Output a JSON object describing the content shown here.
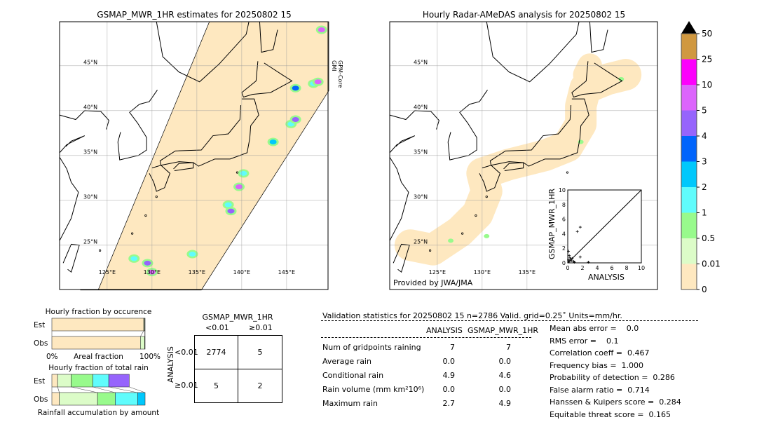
{
  "chart_data": [
    {
      "type": "map",
      "title": "GSMAP_MWR_1HR estimates for 20250802 15",
      "lon_ticks": [
        "125°E",
        "130°E",
        "135°E",
        "140°E",
        "145°E"
      ],
      "lat_ticks": [
        "45°N",
        "40°N",
        "35°N",
        "30°N",
        "25°N"
      ],
      "side_label": [
        "GPM-Core",
        "GMI"
      ]
    },
    {
      "type": "map",
      "title": "Hourly Radar-AMeDAS analysis for 20250802 15",
      "lon_ticks": [
        "125°E",
        "130°E",
        "135°E"
      ],
      "lat_ticks": [
        "45°N",
        "40°N",
        "35°N",
        "30°N",
        "25°N"
      ],
      "credit": "Provided by JWA/JMA"
    },
    {
      "type": "scatter",
      "xlabel": "ANALYSIS",
      "ylabel": "GSMAP_MWR_1HR",
      "xlim": [
        0,
        10
      ],
      "ylim": [
        0,
        10
      ],
      "ticks": [
        "0",
        "2",
        "4",
        "6",
        "8",
        "10"
      ],
      "points": [
        [
          1.7,
          4.9
        ],
        [
          1.3,
          4.3
        ],
        [
          1.7,
          0.8
        ],
        [
          2.8,
          0.1
        ],
        [
          0.1,
          1.6
        ],
        [
          0.2,
          1.0
        ],
        [
          0.3,
          0.7
        ],
        [
          0.4,
          0.5
        ],
        [
          0.5,
          0.3
        ],
        [
          0.8,
          0.2
        ],
        [
          0.2,
          0.2
        ],
        [
          0.1,
          0.4
        ],
        [
          0.6,
          0.6
        ],
        [
          0.9,
          0.1
        ]
      ]
    },
    {
      "type": "colorbar",
      "labels": [
        "0",
        "0.01",
        "0.5",
        "1",
        "2",
        "3",
        "4",
        "5",
        "10",
        "25",
        "50"
      ],
      "colors": [
        "#fee8c0",
        "#dcfcc8",
        "#98fa8c",
        "#60fcfc",
        "#00c8fc",
        "#0064fc",
        "#9664fc",
        "#dc64fc",
        "#fc00fc",
        "#d09840"
      ],
      "extend_color": "#000000"
    },
    {
      "type": "bar",
      "title": "Hourly fraction by occurence",
      "xlabel": "Areal fraction",
      "x0": "0%",
      "x1": "100%",
      "rows": [
        "Est",
        "Obs"
      ],
      "est": [
        {
          "c": "#fee8c0",
          "v": 0.985
        },
        {
          "c": "#dcfcc8",
          "v": 0.01
        },
        {
          "c": "#000000",
          "v": 0.005
        }
      ],
      "obs": [
        {
          "c": "#fee8c0",
          "v": 0.95
        },
        {
          "c": "#dcfcc8",
          "v": 0.045
        },
        {
          "c": "#000000",
          "v": 0.005
        }
      ]
    },
    {
      "type": "bar",
      "title": "Hourly fraction of total rain",
      "xlabel": "Rainfall accumulation by amount",
      "rows": [
        "Est",
        "Obs"
      ],
      "est": [
        {
          "c": "#fee8c0",
          "v": 0.07
        },
        {
          "c": "#dcfcc8",
          "v": 0.165
        },
        {
          "c": "#98fa8c",
          "v": 0.265
        },
        {
          "c": "#60fcfc",
          "v": 0.195
        },
        {
          "c": "#9664fc",
          "v": 0.25
        }
      ],
      "obs": [
        {
          "c": "#fee8c0",
          "v": 0.08
        },
        {
          "c": "#dcfcc8",
          "v": 0.41
        },
        {
          "c": "#98fa8c",
          "v": 0.19
        },
        {
          "c": "#60fcfc",
          "v": 0.24
        },
        {
          "c": "#00c8fc",
          "v": 0.08
        }
      ]
    }
  ],
  "contingency": {
    "title": "GSMAP_MWR_1HR",
    "col": [
      "<0.01",
      "≥0.01"
    ],
    "ylabel": "ANALYSIS",
    "row": [
      "<0.01",
      "≥0.01"
    ],
    "cells": [
      [
        "2774",
        "5"
      ],
      [
        "5",
        "2"
      ]
    ]
  },
  "stats": {
    "header": "Validation statistics for 20250802 15  n=2786 Valid. grid=0.25˚ Units=mm/hr.",
    "cols": [
      "ANALYSIS",
      "GSMAP_MWR_1HR"
    ],
    "rows": [
      {
        "l": "Num of gridpoints raining",
        "a": "7",
        "g": "7"
      },
      {
        "l": "Average rain",
        "a": "0.0",
        "g": "0.0"
      },
      {
        "l": "Conditional rain",
        "a": "4.9",
        "g": "4.6"
      },
      {
        "l": "Rain volume (mm km²10⁶)",
        "a": "0.0",
        "g": "0.0"
      },
      {
        "l": "Maximum rain",
        "a": "2.7",
        "g": "4.9"
      }
    ],
    "scores": [
      "Mean abs error =    0.0",
      "RMS error =    0.1",
      "Correlation coeff =  0.467",
      "Frequency bias =  1.000",
      "Probability of detection =  0.286",
      "False alarm ratio =  0.714",
      "Hanssen & Kuipers score =  0.284",
      "Equitable threat score =  0.165"
    ]
  }
}
